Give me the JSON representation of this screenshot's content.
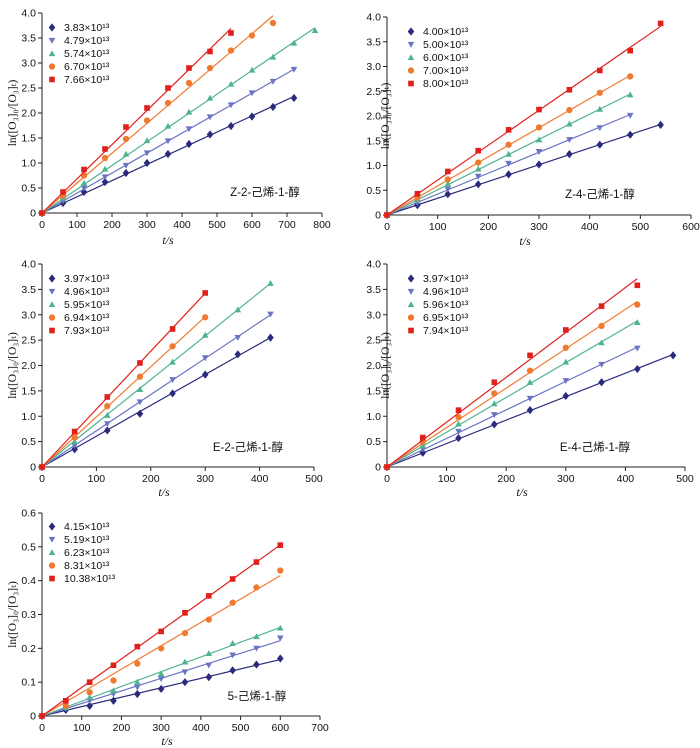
{
  "chart_data": [
    {
      "type": "scatter",
      "caption": "Z-2-己烯-1-醇",
      "xlabel": "t/s",
      "ylabel": "ln([O₃]₀/[O₃]ₜ)",
      "xlim": [
        0,
        800
      ],
      "ylim": [
        0,
        4.0
      ],
      "xticks": [
        "0",
        "100",
        "200",
        "300",
        "400",
        "500",
        "600",
        "700",
        "800"
      ],
      "yticks": [
        "0",
        "0.5",
        "1.0",
        "1.5",
        "2.0",
        "2.5",
        "3.0",
        "3.5",
        "4.0"
      ],
      "legend_position": "top-left",
      "series": [
        {
          "name": "3.83×10¹³",
          "color": "#2b2b7e",
          "marker": "diamond",
          "x": [
            0,
            60,
            120,
            180,
            240,
            300,
            360,
            420,
            480,
            540,
            600,
            660,
            720
          ],
          "y": [
            0,
            0.2,
            0.42,
            0.62,
            0.8,
            1.0,
            1.18,
            1.38,
            1.57,
            1.74,
            1.93,
            2.12,
            2.3
          ]
        },
        {
          "name": "4.79×10¹³",
          "color": "#6b74c4",
          "marker": "triangle-down",
          "x": [
            0,
            60,
            120,
            180,
            240,
            300,
            360,
            420,
            480,
            540,
            600,
            660,
            720
          ],
          "y": [
            0,
            0.24,
            0.5,
            0.72,
            0.95,
            1.2,
            1.44,
            1.68,
            1.92,
            2.16,
            2.4,
            2.63,
            2.87
          ]
        },
        {
          "name": "5.74×10¹³",
          "color": "#4fb390",
          "marker": "triangle-up",
          "x": [
            0,
            60,
            120,
            180,
            240,
            300,
            360,
            420,
            480,
            540,
            600,
            660,
            720,
            780
          ],
          "y": [
            0,
            0.3,
            0.6,
            0.88,
            1.18,
            1.45,
            1.74,
            2.02,
            2.3,
            2.58,
            2.86,
            3.12,
            3.4,
            3.65
          ]
        },
        {
          "name": "6.70×10¹³",
          "color": "#ef7a2f",
          "marker": "circle",
          "x": [
            0,
            60,
            120,
            180,
            240,
            300,
            360,
            420,
            480,
            540,
            600,
            660
          ],
          "y": [
            0,
            0.35,
            0.75,
            1.1,
            1.48,
            1.85,
            2.2,
            2.6,
            2.9,
            3.25,
            3.55,
            3.8
          ]
        },
        {
          "name": "7.66×10¹³",
          "color": "#e0201b",
          "marker": "square",
          "x": [
            0,
            60,
            120,
            180,
            240,
            300,
            360,
            420,
            480,
            540
          ],
          "y": [
            0,
            0.42,
            0.87,
            1.28,
            1.72,
            2.1,
            2.5,
            2.9,
            3.23,
            3.6
          ]
        }
      ]
    },
    {
      "type": "scatter",
      "caption": "Z-4-己烯-1-醇",
      "xlabel": "t/s",
      "ylabel": "ln([O₃]₀/[O₃]ₜ)",
      "xlim": [
        0,
        600
      ],
      "ylim": [
        0,
        4.0
      ],
      "xticks": [
        "0",
        "100",
        "200",
        "300",
        "400",
        "500",
        "600"
      ],
      "yticks": [
        "0",
        "0.5",
        "1.0",
        "1.5",
        "2.0",
        "2.5",
        "3.0",
        "3.5",
        "4.0"
      ],
      "legend_position": "top-left",
      "series": [
        {
          "name": "4.00×10¹³",
          "color": "#2b2b7e",
          "marker": "diamond",
          "x": [
            0,
            60,
            120,
            180,
            240,
            300,
            360,
            420,
            480,
            540
          ],
          "y": [
            0,
            0.2,
            0.42,
            0.62,
            0.82,
            1.02,
            1.23,
            1.42,
            1.62,
            1.82
          ]
        },
        {
          "name": "5.00×10¹³",
          "color": "#6b74c4",
          "marker": "triangle-down",
          "x": [
            0,
            60,
            120,
            180,
            240,
            300,
            360,
            420,
            480
          ],
          "y": [
            0,
            0.25,
            0.52,
            0.78,
            1.04,
            1.28,
            1.52,
            1.76,
            2.01
          ]
        },
        {
          "name": "6.00×10¹³",
          "color": "#4fb390",
          "marker": "triangle-up",
          "x": [
            0,
            60,
            120,
            180,
            240,
            300,
            360,
            420,
            480
          ],
          "y": [
            0,
            0.3,
            0.63,
            0.93,
            1.23,
            1.52,
            1.84,
            2.14,
            2.43
          ]
        },
        {
          "name": "7.00×10¹³",
          "color": "#ef7a2f",
          "marker": "circle",
          "x": [
            0,
            60,
            120,
            180,
            240,
            300,
            360,
            420,
            480
          ],
          "y": [
            0,
            0.35,
            0.72,
            1.06,
            1.42,
            1.77,
            2.12,
            2.47,
            2.8
          ]
        },
        {
          "name": "8.00×10¹³",
          "color": "#e0201b",
          "marker": "square",
          "x": [
            0,
            60,
            120,
            180,
            240,
            300,
            360,
            420,
            480,
            540
          ],
          "y": [
            0,
            0.43,
            0.88,
            1.3,
            1.72,
            2.13,
            2.53,
            2.92,
            3.32,
            3.87
          ]
        }
      ]
    },
    {
      "type": "scatter",
      "caption": "E-2-己烯-1-醇",
      "xlabel": "t/s",
      "ylabel": "ln([O₃]₀/[O₃]ₜ)",
      "xlim": [
        0,
        500
      ],
      "ylim": [
        0,
        4.0
      ],
      "xticks": [
        "0",
        "100",
        "200",
        "300",
        "400",
        "500"
      ],
      "yticks": [
        "0",
        "0.5",
        "1.0",
        "1.5",
        "2.0",
        "2.5",
        "3.0",
        "3.5",
        "4.0"
      ],
      "legend_position": "top-left",
      "series": [
        {
          "name": "3.97×10¹³",
          "color": "#2b2b7e",
          "marker": "diamond",
          "x": [
            0,
            60,
            120,
            180,
            240,
            300,
            360,
            420
          ],
          "y": [
            0,
            0.35,
            0.72,
            1.05,
            1.45,
            1.82,
            2.22,
            2.55
          ]
        },
        {
          "name": "4.96×10¹³",
          "color": "#6b74c4",
          "marker": "triangle-down",
          "x": [
            0,
            60,
            120,
            180,
            240,
            300,
            360,
            420
          ],
          "y": [
            0,
            0.42,
            0.85,
            1.28,
            1.72,
            2.15,
            2.55,
            3.01
          ]
        },
        {
          "name": "5.95×10¹³",
          "color": "#4fb390",
          "marker": "triangle-up",
          "x": [
            0,
            60,
            120,
            180,
            240,
            300,
            360,
            420
          ],
          "y": [
            0,
            0.5,
            1.02,
            1.53,
            2.07,
            2.6,
            3.1,
            3.62
          ]
        },
        {
          "name": "6.94×10¹³",
          "color": "#ef7a2f",
          "marker": "circle",
          "x": [
            0,
            60,
            120,
            180,
            240,
            300
          ],
          "y": [
            0,
            0.58,
            1.2,
            1.78,
            2.38,
            2.95
          ]
        },
        {
          "name": "7.93×10¹³",
          "color": "#e0201b",
          "marker": "square",
          "x": [
            0,
            60,
            120,
            180,
            240,
            300
          ],
          "y": [
            0,
            0.7,
            1.38,
            2.05,
            2.72,
            3.43
          ]
        }
      ]
    },
    {
      "type": "scatter",
      "caption": "E-4-己烯-1-醇",
      "xlabel": "t/s",
      "ylabel": "ln([O₃]₀/[O₃]ₜ)",
      "xlim": [
        0,
        500
      ],
      "ylim": [
        0,
        4.0
      ],
      "xticks": [
        "0",
        "100",
        "200",
        "300",
        "400",
        "500"
      ],
      "yticks": [
        "0",
        "0.5",
        "1.0",
        "1.5",
        "2.0",
        "2.5",
        "3.0",
        "3.5",
        "4.0"
      ],
      "legend_position": "top-left",
      "series": [
        {
          "name": "3.97×10¹³",
          "color": "#2b2b7e",
          "marker": "diamond",
          "x": [
            0,
            60,
            120,
            180,
            240,
            300,
            360,
            420,
            480
          ],
          "y": [
            0,
            0.28,
            0.57,
            0.84,
            1.12,
            1.4,
            1.67,
            1.93,
            2.2
          ]
        },
        {
          "name": "4.96×10¹³",
          "color": "#6b74c4",
          "marker": "triangle-down",
          "x": [
            0,
            60,
            120,
            180,
            240,
            300,
            360,
            420
          ],
          "y": [
            0,
            0.35,
            0.7,
            1.03,
            1.35,
            1.7,
            2.02,
            2.34
          ]
        },
        {
          "name": "5.96×10¹³",
          "color": "#4fb390",
          "marker": "triangle-up",
          "x": [
            0,
            60,
            120,
            180,
            240,
            300,
            360,
            420
          ],
          "y": [
            0,
            0.42,
            0.85,
            1.25,
            1.67,
            2.07,
            2.45,
            2.85
          ]
        },
        {
          "name": "6.95×10¹³",
          "color": "#ef7a2f",
          "marker": "circle",
          "x": [
            0,
            60,
            120,
            180,
            240,
            300,
            360,
            420
          ],
          "y": [
            0,
            0.5,
            0.98,
            1.45,
            1.9,
            2.35,
            2.78,
            3.2
          ]
        },
        {
          "name": "7.94×10¹³",
          "color": "#e0201b",
          "marker": "square",
          "x": [
            0,
            60,
            120,
            180,
            240,
            300,
            360,
            420
          ],
          "y": [
            0,
            0.58,
            1.12,
            1.67,
            2.2,
            2.7,
            3.17,
            3.58
          ]
        }
      ]
    },
    {
      "type": "scatter",
      "caption": "5-己烯-1-醇",
      "xlabel": "t/s",
      "ylabel": "ln([O₃]₀/[O₃]ₜ)",
      "xlim": [
        0,
        700
      ],
      "ylim": [
        0,
        0.6
      ],
      "xticks": [
        "0",
        "100",
        "200",
        "300",
        "400",
        "500",
        "600",
        "700"
      ],
      "yticks": [
        "0",
        "0.1",
        "0.2",
        "0.3",
        "0.4",
        "0.5",
        "0.6"
      ],
      "legend_position": "top-left",
      "series": [
        {
          "name": "4.15×10¹³",
          "color": "#2b2b7e",
          "marker": "diamond",
          "x": [
            0,
            60,
            120,
            180,
            240,
            300,
            360,
            420,
            480,
            540,
            600
          ],
          "y": [
            0,
            0.018,
            0.03,
            0.045,
            0.065,
            0.08,
            0.1,
            0.115,
            0.135,
            0.152,
            0.17
          ]
        },
        {
          "name": "5.19×10¹³",
          "color": "#6b74c4",
          "marker": "triangle-down",
          "x": [
            0,
            60,
            120,
            180,
            240,
            300,
            360,
            420,
            480,
            540,
            600
          ],
          "y": [
            0,
            0.022,
            0.045,
            0.065,
            0.085,
            0.11,
            0.13,
            0.15,
            0.18,
            0.2,
            0.23
          ]
        },
        {
          "name": "6.23×10¹³",
          "color": "#4fb390",
          "marker": "triangle-up",
          "x": [
            0,
            60,
            120,
            180,
            240,
            300,
            360,
            420,
            480,
            540,
            600
          ],
          "y": [
            0,
            0.025,
            0.055,
            0.075,
            0.1,
            0.125,
            0.16,
            0.185,
            0.215,
            0.235,
            0.26
          ]
        },
        {
          "name": "8.31×10¹³",
          "color": "#ef7a2f",
          "marker": "circle",
          "x": [
            0,
            60,
            120,
            180,
            240,
            300,
            360,
            420,
            480,
            540,
            600
          ],
          "y": [
            0,
            0.03,
            0.07,
            0.105,
            0.155,
            0.2,
            0.245,
            0.285,
            0.335,
            0.38,
            0.43
          ]
        },
        {
          "name": "10.38×10¹³",
          "color": "#e0201b",
          "marker": "square",
          "x": [
            0,
            60,
            120,
            180,
            240,
            300,
            360,
            420,
            480,
            540,
            600
          ],
          "y": [
            0,
            0.045,
            0.1,
            0.15,
            0.205,
            0.25,
            0.305,
            0.355,
            0.405,
            0.455,
            0.505
          ]
        }
      ]
    }
  ]
}
